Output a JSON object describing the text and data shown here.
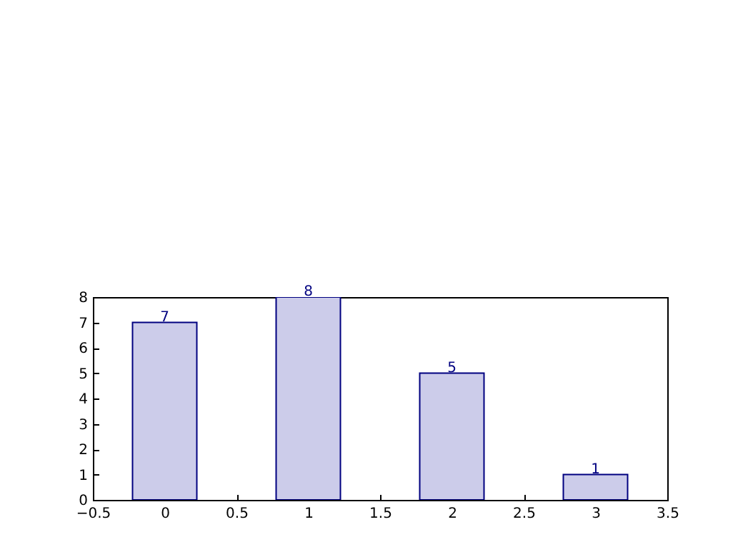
{
  "chart_data": {
    "type": "bar",
    "x": [
      0,
      1,
      2,
      3
    ],
    "values": [
      7,
      8,
      5,
      1
    ],
    "color": "#ccccea",
    "data_labels": true,
    "xlim": [
      -0.5,
      3.5
    ],
    "xticks": [
      {
        "value": -0.5,
        "label": "−0.5"
      },
      0,
      0.5,
      1,
      1.5,
      2,
      2.5,
      3,
      3.5
    ],
    "ylim": [
      0,
      8
    ],
    "yticks": [
      0,
      1,
      2,
      3,
      4,
      5,
      6,
      7,
      8
    ],
    "grid": false
  }
}
